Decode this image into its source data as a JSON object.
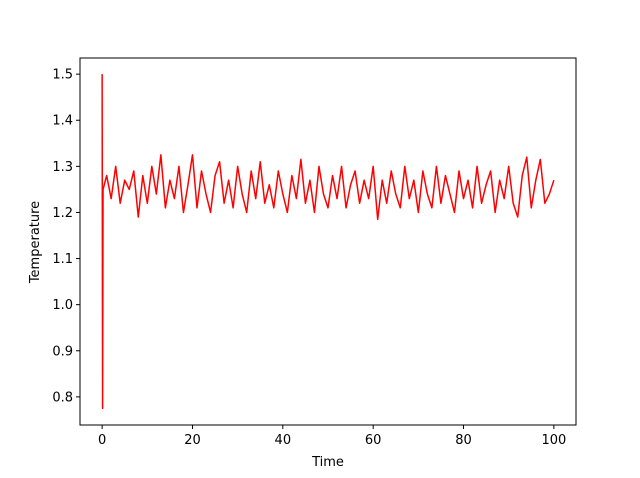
{
  "chart_data": {
    "type": "line",
    "xlabel": "Time",
    "ylabel": "Temperature",
    "color": "#ff0000",
    "x": [
      0,
      0.1,
      0.2,
      1,
      2,
      3,
      4,
      5,
      6,
      7,
      8,
      9,
      10,
      11,
      12,
      13,
      14,
      15,
      16,
      17,
      18,
      19,
      20,
      21,
      22,
      23,
      24,
      25,
      26,
      27,
      28,
      29,
      30,
      31,
      32,
      33,
      34,
      35,
      36,
      37,
      38,
      39,
      40,
      41,
      42,
      43,
      44,
      45,
      46,
      47,
      48,
      49,
      50,
      51,
      52,
      53,
      54,
      55,
      56,
      57,
      58,
      59,
      60,
      61,
      62,
      63,
      64,
      65,
      66,
      67,
      68,
      69,
      70,
      71,
      72,
      73,
      74,
      75,
      76,
      77,
      78,
      79,
      80,
      81,
      82,
      83,
      84,
      85,
      86,
      87,
      88,
      89,
      90,
      91,
      92,
      93,
      94,
      95,
      96,
      97,
      98,
      99,
      100
    ],
    "values": [
      1.5,
      0.775,
      1.25,
      1.28,
      1.23,
      1.3,
      1.22,
      1.27,
      1.25,
      1.29,
      1.19,
      1.28,
      1.22,
      1.3,
      1.24,
      1.325,
      1.21,
      1.27,
      1.23,
      1.3,
      1.2,
      1.26,
      1.325,
      1.21,
      1.29,
      1.24,
      1.2,
      1.28,
      1.31,
      1.22,
      1.27,
      1.21,
      1.3,
      1.24,
      1.2,
      1.29,
      1.23,
      1.31,
      1.22,
      1.26,
      1.21,
      1.29,
      1.24,
      1.2,
      1.28,
      1.23,
      1.315,
      1.22,
      1.27,
      1.2,
      1.3,
      1.24,
      1.21,
      1.28,
      1.23,
      1.3,
      1.21,
      1.26,
      1.29,
      1.22,
      1.27,
      1.23,
      1.3,
      1.185,
      1.27,
      1.22,
      1.29,
      1.24,
      1.21,
      1.3,
      1.23,
      1.27,
      1.2,
      1.29,
      1.24,
      1.21,
      1.3,
      1.22,
      1.28,
      1.24,
      1.2,
      1.29,
      1.23,
      1.27,
      1.21,
      1.3,
      1.22,
      1.26,
      1.29,
      1.2,
      1.27,
      1.23,
      1.3,
      1.22,
      1.19,
      1.28,
      1.32,
      1.21,
      1.27,
      1.315,
      1.22,
      1.24,
      1.27
    ],
    "xlim": [
      -4.9,
      104.9
    ],
    "xticks": [
      0,
      20,
      40,
      60,
      80,
      100
    ],
    "ylim": [
      0.739,
      1.535
    ],
    "yticks": [
      0.8,
      0.9,
      {
        "value": 1,
        "label": "1.0"
      },
      1.1,
      1.2,
      1.3,
      1.4,
      1.5
    ]
  }
}
